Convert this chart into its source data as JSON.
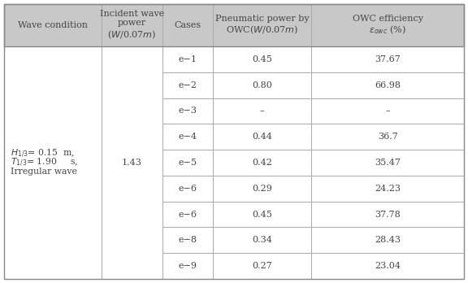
{
  "header_bg": "#c8c8c8",
  "white_bg": "#ffffff",
  "text_color": "#444444",
  "border_color": "#aaaaaa",
  "cases": [
    "e−1",
    "e−2",
    "e−3",
    "e−4",
    "e−5",
    "e−6",
    "e−6",
    "e−8",
    "e−9"
  ],
  "pneumatic_power": [
    "0.45",
    "0.80",
    "–",
    "0.44",
    "0.42",
    "0.29",
    "0.45",
    "0.34",
    "0.27"
  ],
  "owc_efficiency": [
    "37.67",
    "66.98",
    "–",
    "36.7",
    "35.47",
    "24.23",
    "37.78",
    "28.43",
    "23.04"
  ],
  "incident_power": "1.43",
  "header_fontsize": 8.0,
  "cell_fontsize": 8.0,
  "wave_fontsize": 7.8
}
